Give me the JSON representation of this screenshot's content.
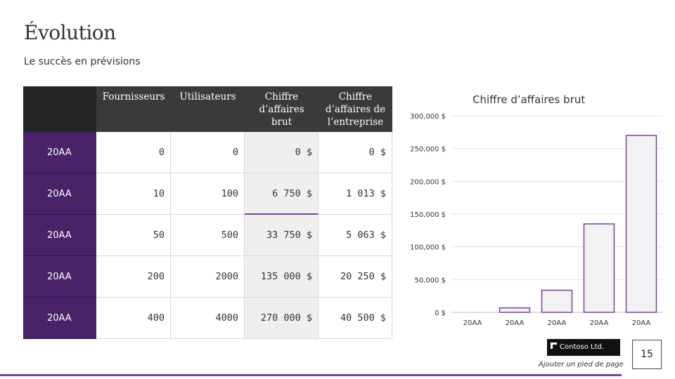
{
  "slide": {
    "title": "Évolution",
    "subtitle": "Le succès en prévisions",
    "footer": "Ajouter un pied de page",
    "logo": "Contoso Ltd.",
    "page_number": "15"
  },
  "table": {
    "headers": [
      "",
      "Fournisseurs",
      "Utilisateurs",
      "Chiffre d’affaires brut",
      "Chiffre d’affaires de l’entreprise"
    ],
    "rows": [
      {
        "year": "20AA",
        "fournisseurs": "0",
        "utilisateurs": "0",
        "ca_brut": "0 $",
        "ca_entreprise": "0 $"
      },
      {
        "year": "20AA",
        "fournisseurs": "10",
        "utilisateurs": "100",
        "ca_brut": "6 750 $",
        "ca_entreprise": "1 013 $"
      },
      {
        "year": "20AA",
        "fournisseurs": "50",
        "utilisateurs": "500",
        "ca_brut": "33 750 $",
        "ca_entreprise": "5 063 $"
      },
      {
        "year": "20AA",
        "fournisseurs": "200",
        "utilisateurs": "2000",
        "ca_brut": "135 000 $",
        "ca_entreprise": "20 250 $"
      },
      {
        "year": "20AA",
        "fournisseurs": "400",
        "utilisateurs": "4000",
        "ca_brut": "270 000 $",
        "ca_entreprise": "40 500 $"
      }
    ]
  },
  "chart_data": {
    "type": "bar",
    "title": "Chiffre d’affaires brut",
    "categories": [
      "20AA",
      "20AA",
      "20AA",
      "20AA",
      "20AA"
    ],
    "values": [
      0,
      6750,
      33750,
      135000,
      270000
    ],
    "ylim": [
      0,
      300000
    ],
    "yticks": [
      "0 $",
      "50,000 $",
      "100,000 $",
      "150,000 $",
      "200,000 $",
      "250,000 $",
      "300,000 $"
    ],
    "grid": true,
    "bar_fill": "#f2f1f4",
    "bar_stroke": "#7a3fa0"
  },
  "colors": {
    "accent": "#7a3fa0",
    "year_cell": "#4a2268",
    "header": "#3a3a3a"
  }
}
